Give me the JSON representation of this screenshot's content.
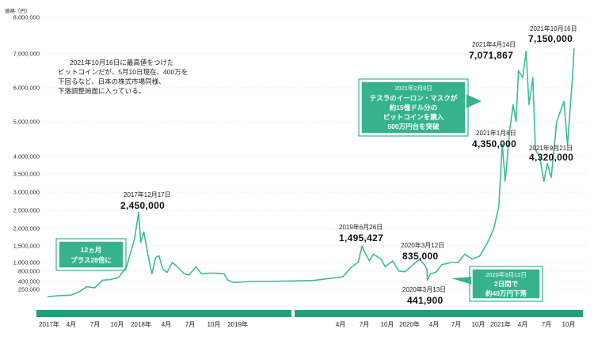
{
  "chart_data": {
    "type": "line",
    "ylabel": "価格（円）",
    "yticks": [
      {
        "v": 8000000,
        "label": "8,000,000"
      },
      {
        "v": 7000000,
        "label": "7,000,000"
      },
      {
        "v": 6000000,
        "label": "6,000,000"
      },
      {
        "v": 5000000,
        "label": "5,000,000"
      },
      {
        "v": 4000000,
        "label": "4,000,000"
      },
      {
        "v": 3500000,
        "label": "3,500,000"
      },
      {
        "v": 3000000,
        "label": "3,000,000"
      },
      {
        "v": 2500000,
        "label": "2,500,000"
      },
      {
        "v": 2000000,
        "label": "2,000,000"
      },
      {
        "v": 1500000,
        "label": "1,500,000"
      },
      {
        "v": 1000000,
        "label": "1,000,000"
      },
      {
        "v": 800000,
        "label": "800,000"
      },
      {
        "v": 400000,
        "label": "400,000"
      },
      {
        "v": 250000,
        "label": "250,000"
      }
    ],
    "xticks": [
      "2017年",
      "4月",
      "7月",
      "10月",
      "2018年",
      "4月",
      "7月",
      "10月",
      "2019年",
      "4月",
      "7月",
      "10月",
      "2020年",
      "4月",
      "7月",
      "10月",
      "2021年",
      "4月",
      "7月",
      "10月"
    ],
    "annotation_note": "2021年10月16日に最高値をつけたビットコインだが、5月10日現在、400万を下回るなど、日本の株式市場同様、下落調整局面に入っている。",
    "note_lines": [
      "2021年10月16日に最高値をつけた",
      "ビットコインだが、5月10日現在、400万を",
      "下回るなど、日本の株式市場同様、",
      "下落調整局面に入っている。"
    ],
    "callouts": [
      {
        "date": "2017年12月17日",
        "value": "2,450,000"
      },
      {
        "date": "2019年6月26日",
        "value": "1,495,427"
      },
      {
        "date": "2020年3月12日",
        "value": "835,000"
      },
      {
        "date": "2020年3月13日",
        "value": "441,900"
      },
      {
        "date": "2021年1月8日",
        "value": "4,350,000"
      },
      {
        "date": "2021年4月14日",
        "value": "7,071,867"
      },
      {
        "date": "2021年9月21日",
        "value": "4,320,000"
      },
      {
        "date": "2021年10月16日",
        "value": "7,150,000"
      }
    ],
    "boxes": [
      {
        "lines": [
          "12ヵ月",
          "プラス28倍に"
        ]
      },
      {
        "title": "2021年2月8日",
        "lines": [
          "テスラのイーロン・マスクが",
          "約15億ドル分の",
          "ビットコインを購入",
          "500万円台を突破"
        ]
      },
      {
        "title": "2020年3月12日",
        "lines": [
          "2日間で",
          "約40万円下落"
        ]
      }
    ],
    "series": [
      {
        "values": [
          [
            "2017-01-01",
            110000
          ],
          [
            "2017-02-01",
            125000
          ],
          [
            "2017-03-01",
            135000
          ],
          [
            "2017-04-01",
            140000
          ],
          [
            "2017-05-01",
            200000
          ],
          [
            "2017-06-01",
            300000
          ],
          [
            "2017-07-01",
            280000
          ],
          [
            "2017-08-01",
            450000
          ],
          [
            "2017-09-01",
            480000
          ],
          [
            "2017-10-01",
            560000
          ],
          [
            "2017-11-01",
            900000
          ],
          [
            "2017-12-01",
            1700000
          ],
          [
            "2017-12-17",
            2450000
          ],
          [
            "2017-12-25",
            1600000
          ],
          [
            "2018-01-06",
            1900000
          ],
          [
            "2018-01-20",
            1300000
          ],
          [
            "2018-02-06",
            700000
          ],
          [
            "2018-02-20",
            1150000
          ],
          [
            "2018-03-05",
            1200000
          ],
          [
            "2018-03-20",
            850000
          ],
          [
            "2018-04-05",
            750000
          ],
          [
            "2018-04-25",
            1000000
          ],
          [
            "2018-05-15",
            900000
          ],
          [
            "2018-06-10",
            700000
          ],
          [
            "2018-06-28",
            650000
          ],
          [
            "2018-07-25",
            900000
          ],
          [
            "2018-08-15",
            700000
          ],
          [
            "2018-09-10",
            720000
          ],
          [
            "2018-10-10",
            720000
          ],
          [
            "2018-11-10",
            700000
          ],
          [
            "2018-11-25",
            450000
          ],
          [
            "2018-12-15",
            380000
          ],
          [
            "2019-01-15",
            400000
          ],
          [
            "2019-02-15",
            410000
          ],
          [
            "2019-03-15",
            440000
          ],
          [
            "2019-04-10",
            580000
          ],
          [
            "2019-05-15",
            900000
          ],
          [
            "2019-06-10",
            1000000
          ],
          [
            "2019-06-26",
            1495427
          ],
          [
            "2019-07-10",
            1250000
          ],
          [
            "2019-07-25",
            1050000
          ],
          [
            "2019-08-10",
            1250000
          ],
          [
            "2019-09-10",
            1100000
          ],
          [
            "2019-09-26",
            900000
          ],
          [
            "2019-10-26",
            1050000
          ],
          [
            "2019-11-20",
            800000
          ],
          [
            "2019-12-15",
            780000
          ],
          [
            "2020-01-15",
            950000
          ],
          [
            "2020-02-12",
            1100000
          ],
          [
            "2020-03-01",
            950000
          ],
          [
            "2020-03-12",
            835000
          ],
          [
            "2020-03-13",
            441900
          ],
          [
            "2020-03-25",
            700000
          ],
          [
            "2020-04-15",
            750000
          ],
          [
            "2020-05-10",
            950000
          ],
          [
            "2020-06-15",
            1000000
          ],
          [
            "2020-07-15",
            1000000
          ],
          [
            "2020-08-10",
            1250000
          ],
          [
            "2020-09-10",
            1100000
          ],
          [
            "2020-10-10",
            1200000
          ],
          [
            "2020-11-10",
            1600000
          ],
          [
            "2020-12-05",
            2000000
          ],
          [
            "2020-12-25",
            2600000
          ],
          [
            "2021-01-08",
            4350000
          ],
          [
            "2021-01-20",
            3300000
          ],
          [
            "2021-02-08",
            4800000
          ],
          [
            "2021-02-21",
            5500000
          ],
          [
            "2021-03-05",
            5000000
          ],
          [
            "2021-03-15",
            6500000
          ],
          [
            "2021-04-01",
            6300000
          ],
          [
            "2021-04-14",
            7071867
          ],
          [
            "2021-04-25",
            5500000
          ],
          [
            "2021-05-10",
            6300000
          ],
          [
            "2021-05-20",
            4200000
          ],
          [
            "2021-06-05",
            4000000
          ],
          [
            "2021-06-22",
            3300000
          ],
          [
            "2021-07-05",
            3800000
          ],
          [
            "2021-07-20",
            3400000
          ],
          [
            "2021-08-10",
            5000000
          ],
          [
            "2021-09-07",
            5600000
          ],
          [
            "2021-09-21",
            4320000
          ],
          [
            "2021-10-01",
            5400000
          ],
          [
            "2021-10-10",
            6300000
          ],
          [
            "2021-10-16",
            7150000
          ]
        ]
      }
    ],
    "colors": {
      "line": "#3fba9b",
      "box": "#36b38e",
      "axisbar": "#22a07a"
    }
  }
}
